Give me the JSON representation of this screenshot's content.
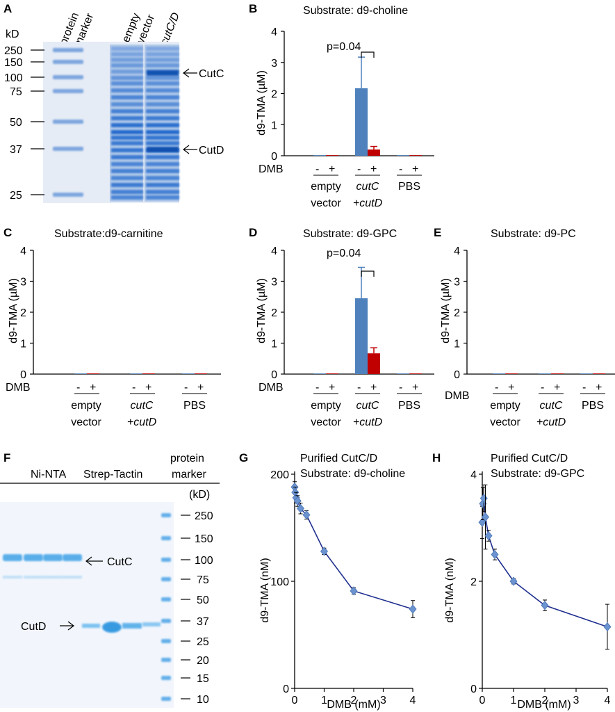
{
  "panels": {
    "A": {
      "letter": "A",
      "kd_label": "kD",
      "lane_labels": [
        "protein",
        "marker",
        "empty",
        "vector",
        "cutC/D"
      ],
      "marker_sizes": [
        "250",
        "150",
        "100",
        "75",
        "50",
        "37",
        "25"
      ],
      "arrow_labels": [
        "CutC",
        "CutD"
      ]
    },
    "F": {
      "letter": "F",
      "group_labels": [
        "Ni-NTA",
        "Strep-Tactin",
        "protein",
        "marker",
        "(kD)"
      ],
      "marker_sizes": [
        "250",
        "150",
        "100",
        "75",
        "50",
        "37",
        "25",
        "20",
        "15",
        "10"
      ],
      "arrow_labels": [
        "CutC",
        "CutD"
      ]
    },
    "bar_common": {
      "dmb_label": "DMB",
      "signs": [
        "-",
        "+"
      ],
      "groups": [
        {
          "line1": "empty",
          "line2": "vector"
        },
        {
          "line1": "cutC",
          "line2": "+cutD"
        },
        {
          "line1": "PBS",
          "line2": ""
        }
      ],
      "ylabel": "d9-TMA (µM)",
      "ticks": [
        "0",
        "1",
        "2",
        "3",
        "4"
      ]
    },
    "B": {
      "letter": "B",
      "title": "Substrate: d9-choline",
      "pvalue": "p=0.04"
    },
    "C": {
      "letter": "C",
      "title": "Substrate:d9-carnitine"
    },
    "D": {
      "letter": "D",
      "title": "Substrate: d9-GPC",
      "pvalue": "p=0.04"
    },
    "E": {
      "letter": "E",
      "title": "Substrate: d9-PC"
    },
    "G": {
      "letter": "G",
      "title1": "Purified CutC/D",
      "title2": "Substrate: d9-choline"
    },
    "H": {
      "letter": "H",
      "title1": "Purified CutC/D",
      "title2": "Substrate: d9-GPC"
    }
  },
  "chart_data": [
    {
      "panel": "B",
      "type": "bar",
      "title": "Substrate: d9-choline",
      "ylabel": "d9-TMA (µM)",
      "ylim": [
        0,
        4
      ],
      "categories": [
        "empty vector",
        "cutC +cutD",
        "PBS"
      ],
      "series": [
        {
          "name": "DMB -",
          "color": "#4f81bd",
          "values": [
            0.02,
            2.17,
            0.02
          ],
          "errors": [
            0,
            1.0,
            0
          ]
        },
        {
          "name": "DMB +",
          "color": "#c00000",
          "values": [
            0.02,
            0.2,
            0.02
          ],
          "errors": [
            0,
            0.1,
            0
          ]
        }
      ]
    },
    {
      "panel": "C",
      "type": "bar",
      "title": "Substrate:d9-carnitine",
      "ylabel": "d9-TMA (µM)",
      "ylim": [
        0,
        4
      ],
      "categories": [
        "empty vector",
        "cutC +cutD",
        "PBS"
      ],
      "series": [
        {
          "name": "DMB -",
          "color": "#4f81bd",
          "values": [
            0.02,
            0.02,
            0.02
          ],
          "errors": [
            0,
            0,
            0
          ]
        },
        {
          "name": "DMB +",
          "color": "#c00000",
          "values": [
            0.02,
            0.02,
            0.02
          ],
          "errors": [
            0,
            0,
            0
          ]
        }
      ]
    },
    {
      "panel": "D",
      "type": "bar",
      "title": "Substrate: d9-GPC",
      "ylabel": "d9-TMA (µM)",
      "ylim": [
        0,
        4
      ],
      "categories": [
        "empty vector",
        "cutC +cutD",
        "PBS"
      ],
      "series": [
        {
          "name": "DMB -",
          "color": "#4f81bd",
          "values": [
            0.02,
            2.45,
            0.02
          ],
          "errors": [
            0,
            1.0,
            0
          ]
        },
        {
          "name": "DMB +",
          "color": "#c00000",
          "values": [
            0.02,
            0.67,
            0.02
          ],
          "errors": [
            0,
            0.18,
            0
          ]
        }
      ]
    },
    {
      "panel": "E",
      "type": "bar",
      "title": "Substrate: d9-PC",
      "ylabel": "d9-TMA (µM)",
      "ylim": [
        0,
        4
      ],
      "categories": [
        "empty vector",
        "cutC +cutD",
        "PBS"
      ],
      "series": [
        {
          "name": "DMB -",
          "color": "#4f81bd",
          "values": [
            0.02,
            0.02,
            0.02
          ],
          "errors": [
            0,
            0,
            0
          ]
        },
        {
          "name": "DMB +",
          "color": "#c00000",
          "values": [
            0.02,
            0.02,
            0.02
          ],
          "errors": [
            0,
            0,
            0
          ]
        }
      ]
    },
    {
      "panel": "G",
      "type": "line",
      "title": "Purified CutC/D Substrate: d9-choline",
      "xlabel": "DMB (mM)",
      "ylabel": "d9-TMA (nM)",
      "xlim": [
        0,
        4
      ],
      "ylim": [
        0,
        200
      ],
      "xticks": [
        "0",
        "1",
        "2",
        "3",
        "4"
      ],
      "yticks": [
        "0",
        "100",
        "200"
      ],
      "x": [
        0,
        0.02,
        0.05,
        0.1,
        0.2,
        0.4,
        1,
        2,
        4
      ],
      "y": [
        188,
        183,
        178,
        175,
        168,
        162,
        128,
        91,
        74
      ],
      "errors": [
        5,
        5,
        5,
        5,
        5,
        4,
        3,
        3,
        8
      ]
    },
    {
      "panel": "H",
      "type": "line",
      "title": "Purified CutC/D Substrate: d9-GPC",
      "xlabel": "DMB (mM)",
      "ylabel": "d9-TMA (nM)",
      "xlim": [
        0,
        4
      ],
      "ylim": [
        0,
        4
      ],
      "xticks": [
        "0",
        "1",
        "2",
        "3",
        "4"
      ],
      "yticks": [
        "0",
        "2",
        "4"
      ],
      "x": [
        0,
        0.02,
        0.05,
        0.1,
        0.2,
        0.4,
        1,
        2,
        4
      ],
      "y": [
        3.1,
        3.45,
        3.55,
        3.2,
        2.85,
        2.5,
        2.0,
        1.55,
        1.15
      ],
      "errors": [
        0.3,
        0.3,
        0.25,
        0.6,
        0.1,
        0.1,
        0.05,
        0.1,
        0.42
      ]
    }
  ]
}
